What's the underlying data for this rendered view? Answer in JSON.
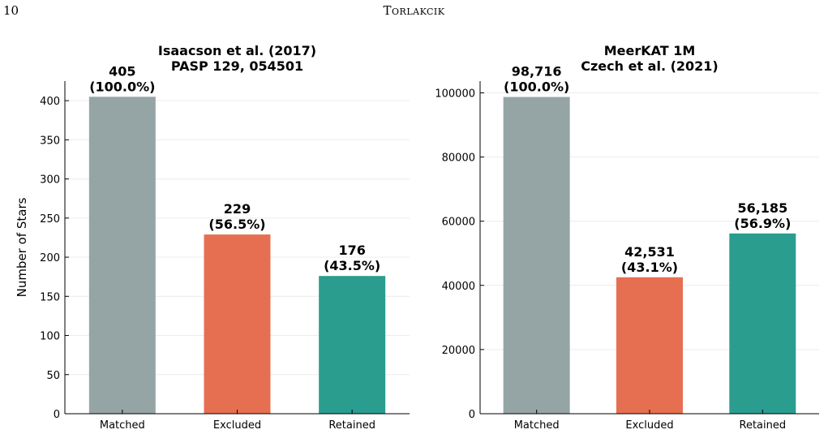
{
  "page": {
    "page_number": "10",
    "running_head": "Torlakcik"
  },
  "chart_data": [
    {
      "type": "bar",
      "title": [
        "Isaacson et al. (2017)",
        "PASP 129, 054501"
      ],
      "xlabel": "",
      "ylabel": "Number of Stars",
      "categories": [
        "Matched",
        "Excluded",
        "Retained"
      ],
      "values": [
        405,
        229,
        176
      ],
      "data_labels": [
        [
          "405",
          "(100.0%)"
        ],
        [
          "229",
          "(56.5%)"
        ],
        [
          "176",
          "(43.5%)"
        ]
      ],
      "ylim": [
        0,
        425
      ],
      "yticks": [
        0,
        50,
        100,
        150,
        200,
        250,
        300,
        350,
        400
      ],
      "ytick_labels": [
        "0",
        "50",
        "100",
        "150",
        "200",
        "250",
        "300",
        "350",
        "400"
      ],
      "colors": [
        "#95a5a6",
        "#e76f51",
        "#2a9d8f"
      ],
      "grid": true
    },
    {
      "type": "bar",
      "title": [
        "MeerKAT 1M",
        "Czech et al. (2021)"
      ],
      "xlabel": "",
      "ylabel": "",
      "categories": [
        "Matched",
        "Excluded",
        "Retained"
      ],
      "values": [
        98716,
        42531,
        56185
      ],
      "data_labels": [
        [
          "98,716",
          "(100.0%)"
        ],
        [
          "42,531",
          "(43.1%)"
        ],
        [
          "56,185",
          "(56.9%)"
        ]
      ],
      "ylim": [
        0,
        103657
      ],
      "yticks": [
        0,
        20000,
        40000,
        60000,
        80000,
        100000
      ],
      "ytick_labels": [
        "0",
        "20000",
        "40000",
        "60000",
        "80000",
        "100000"
      ],
      "colors": [
        "#95a5a6",
        "#e76f51",
        "#2a9d8f"
      ],
      "grid": true
    }
  ]
}
